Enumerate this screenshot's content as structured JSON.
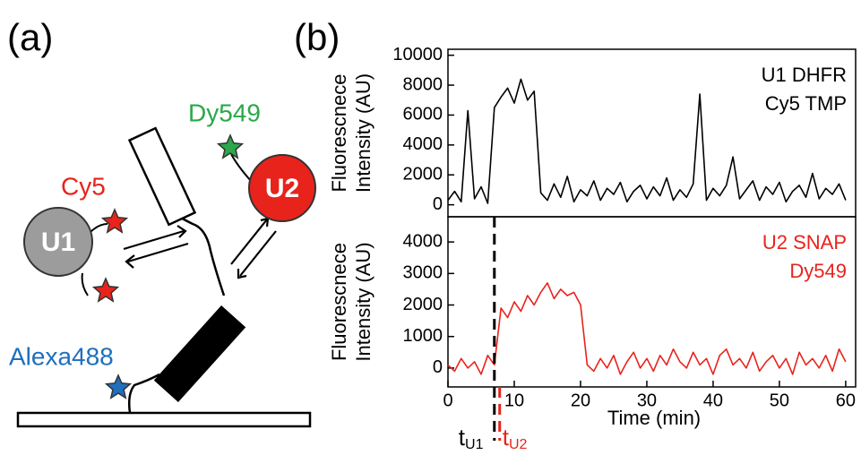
{
  "panel_labels": [
    "(a)",
    "(b)"
  ],
  "diagram": {
    "dye_labels": [
      "Cy5",
      "Dy549",
      "Alexa488"
    ],
    "unit_labels": [
      "U1",
      "U2"
    ]
  },
  "chart_data": [
    {
      "type": "line",
      "ylabel": [
        "Fluorescnece",
        "Intensity (AU)"
      ],
      "annotation_lines": [
        "U1 DHFR",
        "Cy5 TMP"
      ],
      "x": [
        0,
        1,
        2,
        3,
        4,
        5,
        6,
        7,
        8,
        9,
        10,
        11,
        12,
        13,
        14,
        15,
        16,
        17,
        18,
        19,
        20,
        21,
        22,
        23,
        24,
        25,
        26,
        27,
        28,
        29,
        30,
        31,
        32,
        33,
        34,
        35,
        36,
        37,
        38,
        39,
        40,
        41,
        42,
        43,
        44,
        45,
        46,
        47,
        48,
        49,
        50,
        51,
        52,
        53,
        54,
        55,
        56,
        57,
        58,
        59,
        60
      ],
      "series": [
        {
          "color": "#000000",
          "values": [
            300,
            900,
            200,
            6300,
            400,
            1200,
            100,
            6500,
            7200,
            7800,
            6800,
            8400,
            7000,
            7600,
            800,
            300,
            1400,
            500,
            1900,
            200,
            1000,
            600,
            1600,
            300,
            1100,
            700,
            1500,
            200,
            900,
            1300,
            400,
            1200,
            600,
            1800,
            300,
            1000,
            500,
            1400,
            7400,
            300,
            1100,
            600,
            1300,
            3200,
            400,
            1000,
            1600,
            300,
            1200,
            700,
            1500,
            200,
            900,
            1300,
            500,
            2100,
            400,
            1100,
            700,
            1400,
            300
          ]
        }
      ],
      "xlim": [
        0,
        61.5
      ],
      "ylim": [
        -800,
        10400
      ],
      "yticks": [
        0,
        2000,
        4000,
        6000,
        8000,
        10000
      ]
    },
    {
      "type": "line",
      "ylabel": [
        "Fluorescnece",
        "Intensity (AU)"
      ],
      "xlabel": "Time (min)",
      "annotation_lines": [
        "U2 SNAP",
        "Dy549"
      ],
      "annotation_color": "#e8231c",
      "x": [
        0,
        1,
        2,
        3,
        4,
        5,
        6,
        7,
        8,
        9,
        10,
        11,
        12,
        13,
        14,
        15,
        16,
        17,
        18,
        19,
        20,
        21,
        22,
        23,
        24,
        25,
        26,
        27,
        28,
        29,
        30,
        31,
        32,
        33,
        34,
        35,
        36,
        37,
        38,
        39,
        40,
        41,
        42,
        43,
        44,
        45,
        46,
        47,
        48,
        49,
        50,
        51,
        52,
        53,
        54,
        55,
        56,
        57,
        58,
        59,
        60
      ],
      "series": [
        {
          "color": "#e8231c",
          "values": [
            100,
            -100,
            300,
            0,
            200,
            -200,
            400,
            100,
            1900,
            1600,
            2100,
            1800,
            2300,
            2000,
            2400,
            2700,
            2200,
            2500,
            2300,
            2400,
            2000,
            100,
            -100,
            300,
            0,
            400,
            -200,
            200,
            500,
            0,
            300,
            -100,
            400,
            100,
            600,
            200,
            0,
            500,
            100,
            300,
            -200,
            400,
            600,
            100,
            300,
            0,
            500,
            -100,
            200,
            400,
            0,
            300,
            -200,
            500,
            100,
            300,
            0,
            400,
            -100,
            600,
            200
          ]
        }
      ],
      "xlim": [
        0,
        61.5
      ],
      "ylim": [
        -600,
        4800
      ],
      "xticks": [
        0,
        10,
        20,
        30,
        40,
        50,
        60
      ],
      "yticks": [
        0,
        1000,
        2000,
        3000,
        4000
      ],
      "markers": [
        {
          "label": "t",
          "subscript": "U1",
          "x": 7,
          "color": "#000000"
        },
        {
          "label": "t",
          "subscript": "U2",
          "x": 7.8,
          "color": "#e8231c"
        }
      ]
    }
  ]
}
